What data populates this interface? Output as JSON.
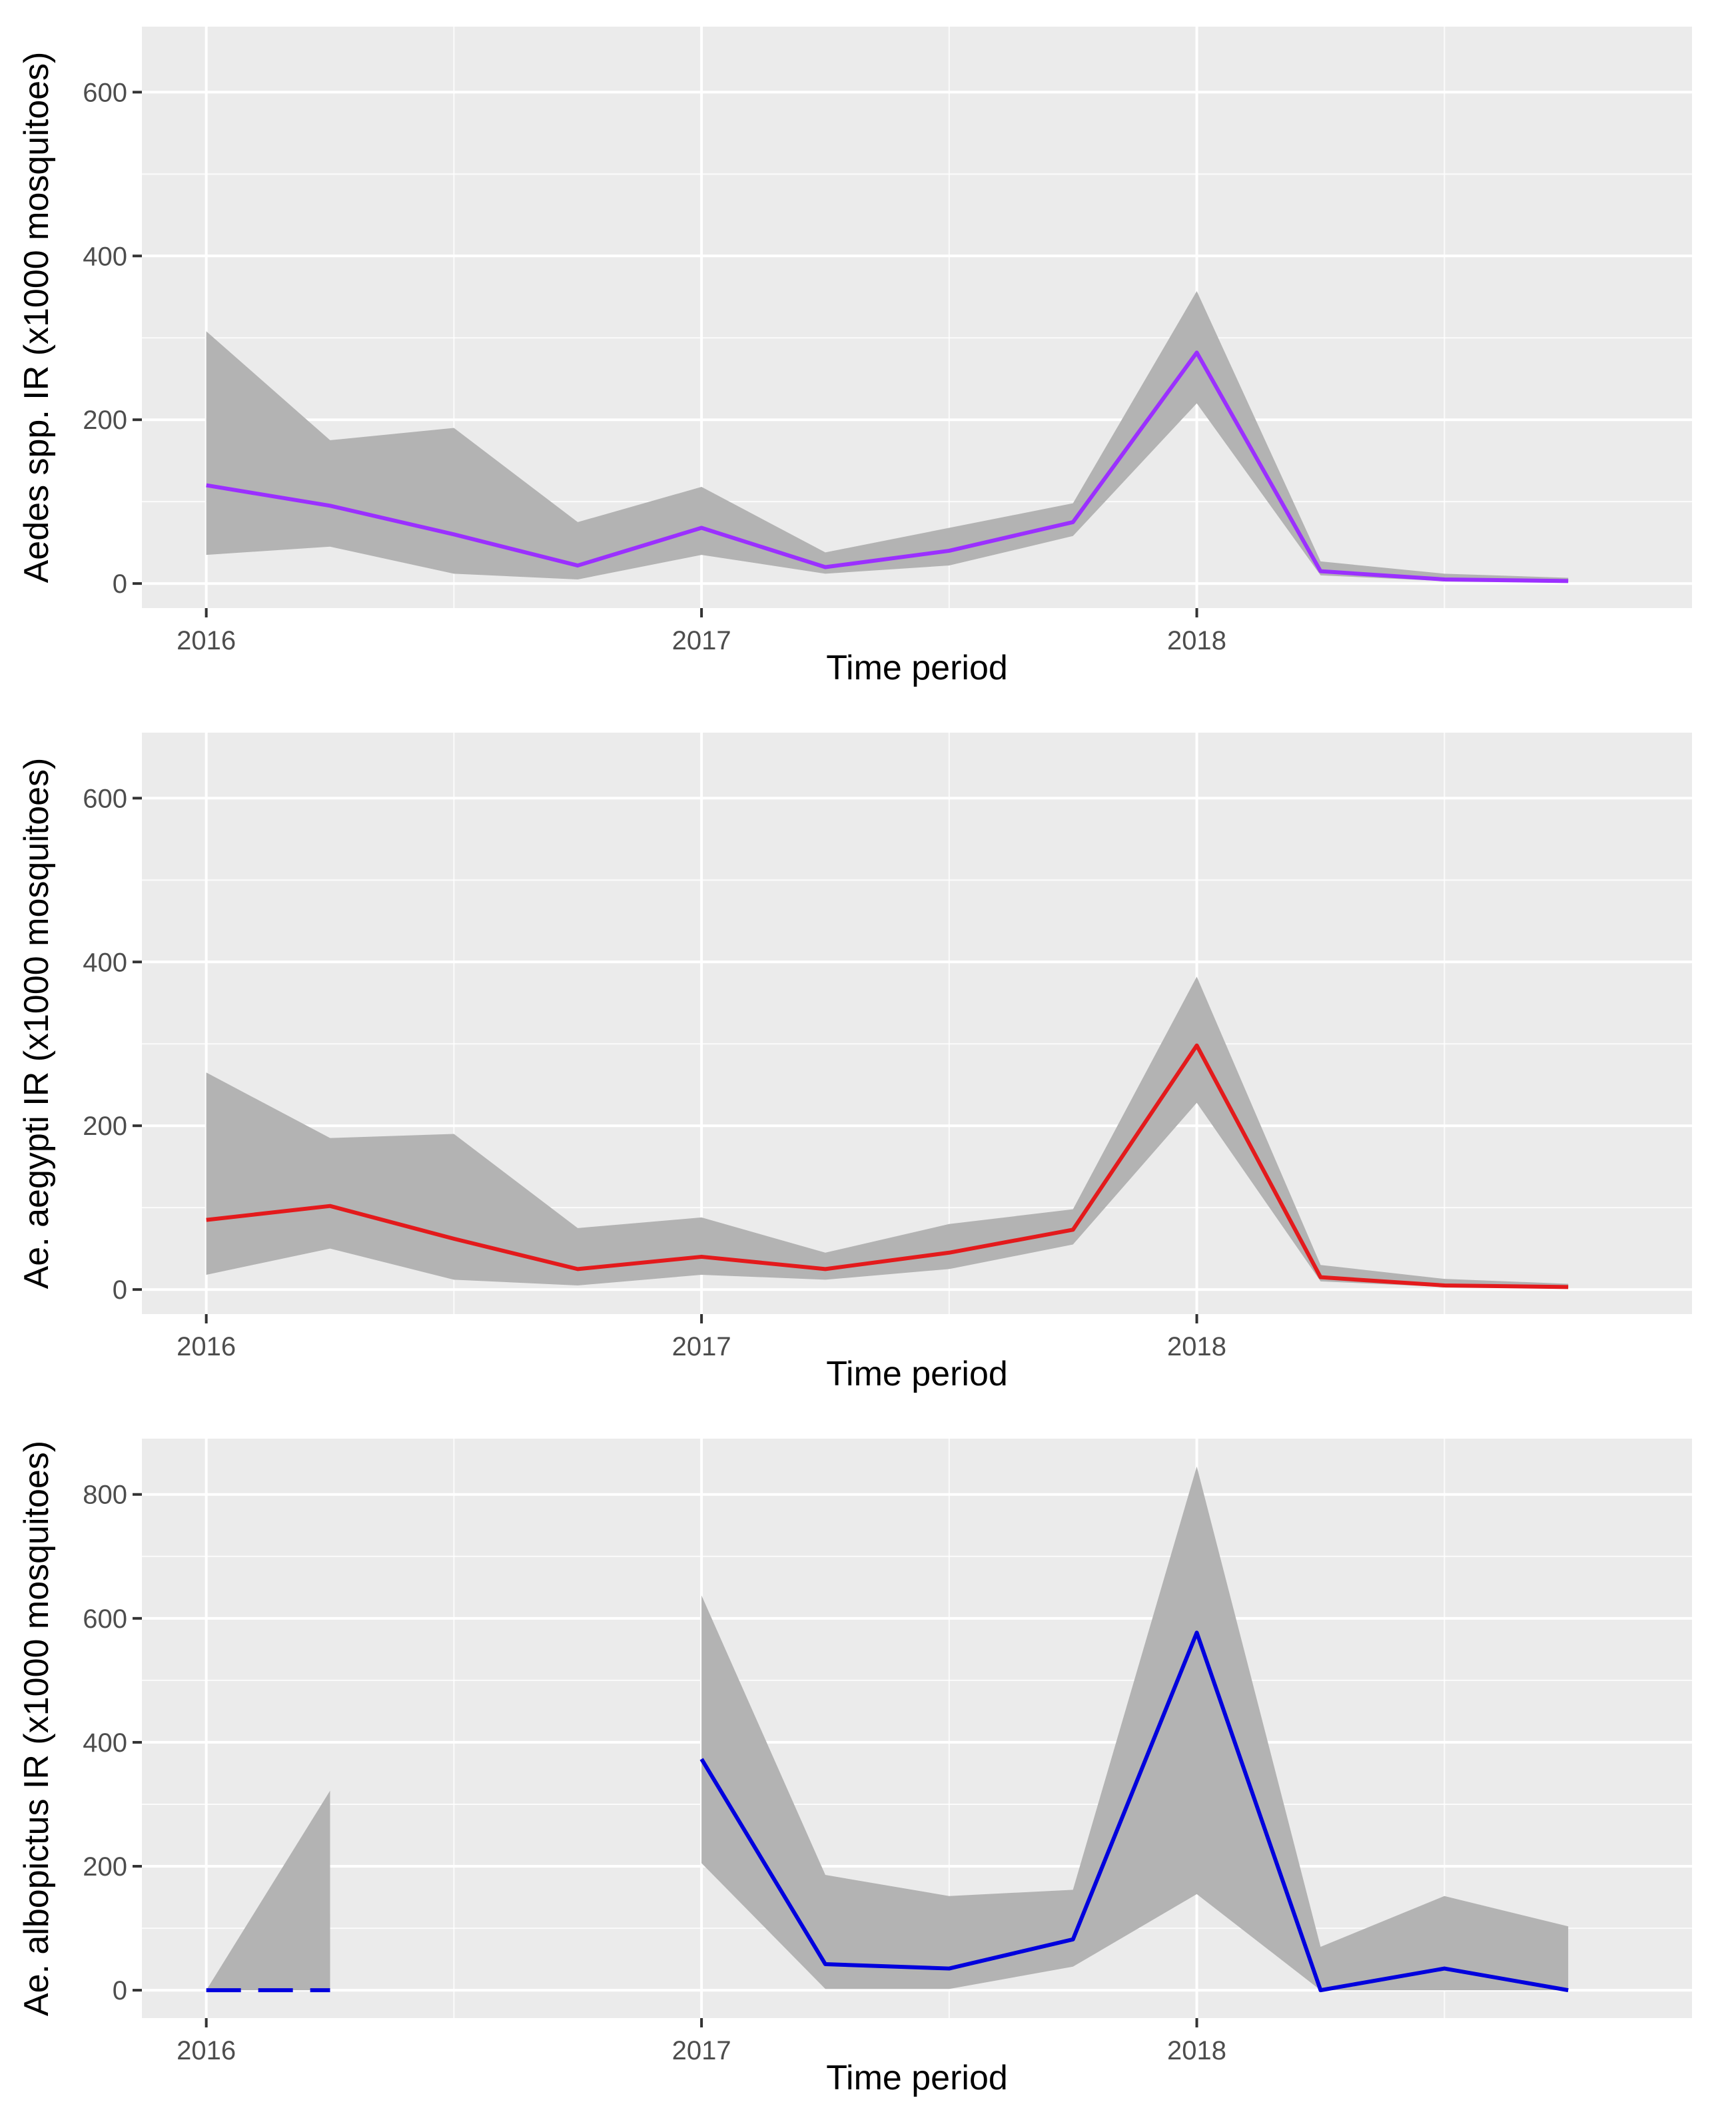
{
  "chart_data": [
    {
      "type": "line",
      "title": "",
      "xlabel": "Time period",
      "ylabel": "Aedes spp. IR (x1000 mosquitoes)",
      "x_ticks": [
        2016,
        2017,
        2018
      ],
      "x_tick_labels": [
        "2016",
        "2017",
        "2018"
      ],
      "xlim": [
        2015.87,
        2019.0
      ],
      "y_ticks": [
        0,
        200,
        400,
        600
      ],
      "y_tick_labels": [
        "0",
        "200",
        "400",
        "600"
      ],
      "ylim": [
        -30,
        680
      ],
      "grid": true,
      "color": "#9b30ff",
      "x": [
        2016.0,
        2016.25,
        2016.5,
        2016.75,
        2017.0,
        2017.25,
        2017.5,
        2017.75,
        2018.0,
        2018.25,
        2018.5,
        2018.75
      ],
      "series": [
        {
          "name": "IR",
          "segments": [
            {
              "style": "solid",
              "x": [
                2016.0,
                2016.25,
                2016.5,
                2016.75,
                2017.0,
                2017.25,
                2017.5,
                2017.75,
                2018.0,
                2018.25,
                2018.5,
                2018.75
              ],
              "y": [
                120,
                95,
                60,
                22,
                68,
                20,
                40,
                75,
                282,
                15,
                5,
                3
              ]
            }
          ]
        }
      ],
      "ribbons": [
        {
          "x": [
            2016.0,
            2016.25,
            2016.5,
            2016.75,
            2017.0,
            2017.25,
            2017.5,
            2017.75,
            2018.0,
            2018.25,
            2018.5,
            2018.75
          ],
          "lower": [
            35,
            45,
            12,
            5,
            35,
            12,
            22,
            58,
            220,
            10,
            3,
            2
          ],
          "upper": [
            308,
            175,
            190,
            75,
            118,
            38,
            68,
            98,
            357,
            27,
            12,
            7
          ]
        }
      ]
    },
    {
      "type": "line",
      "title": "",
      "xlabel": "Time period",
      "ylabel": "Ae. aegypti IR (x1000 mosquitoes)",
      "x_ticks": [
        2016,
        2017,
        2018
      ],
      "x_tick_labels": [
        "2016",
        "2017",
        "2018"
      ],
      "xlim": [
        2015.87,
        2019.0
      ],
      "y_ticks": [
        0,
        200,
        400,
        600
      ],
      "y_tick_labels": [
        "0",
        "200",
        "400",
        "600"
      ],
      "ylim": [
        -30,
        680
      ],
      "grid": true,
      "color": "#e31a1c",
      "x": [
        2016.0,
        2016.25,
        2016.5,
        2016.75,
        2017.0,
        2017.25,
        2017.5,
        2017.75,
        2018.0,
        2018.25,
        2018.5,
        2018.75
      ],
      "series": [
        {
          "name": "IR",
          "segments": [
            {
              "style": "solid",
              "x": [
                2016.0,
                2016.25,
                2016.5,
                2016.75,
                2017.0,
                2017.25,
                2017.5,
                2017.75,
                2018.0,
                2018.25,
                2018.5,
                2018.75
              ],
              "y": [
                85,
                102,
                62,
                25,
                40,
                25,
                45,
                73,
                298,
                15,
                5,
                3
              ]
            }
          ]
        }
      ],
      "ribbons": [
        {
          "x": [
            2016.0,
            2016.25,
            2016.5,
            2016.75,
            2017.0,
            2017.25,
            2017.5,
            2017.75,
            2018.0,
            2018.25,
            2018.5,
            2018.75
          ],
          "lower": [
            18,
            50,
            12,
            5,
            18,
            12,
            25,
            55,
            228,
            10,
            3,
            2
          ],
          "upper": [
            265,
            185,
            190,
            75,
            88,
            45,
            80,
            98,
            382,
            30,
            13,
            7
          ]
        }
      ]
    },
    {
      "type": "line",
      "title": "",
      "xlabel": "Time period",
      "ylabel": "Ae. albopictus IR (x1000 mosquitoes)",
      "x_ticks": [
        2016,
        2017,
        2018
      ],
      "x_tick_labels": [
        "2016",
        "2017",
        "2018"
      ],
      "xlim": [
        2015.87,
        2019.0
      ],
      "y_ticks": [
        0,
        200,
        400,
        600,
        800
      ],
      "y_tick_labels": [
        "0",
        "200",
        "400",
        "600",
        "800"
      ],
      "ylim": [
        -45,
        890
      ],
      "grid": true,
      "color": "#0000dd",
      "x": [
        2016.0,
        2016.25,
        2017.0,
        2017.25,
        2017.5,
        2017.75,
        2018.0,
        2018.25,
        2018.5,
        2018.75
      ],
      "series": [
        {
          "name": "IR",
          "segments": [
            {
              "style": "dashed",
              "x": [
                2016.0,
                2016.25
              ],
              "y": [
                0,
                0
              ]
            },
            {
              "style": "solid",
              "x": [
                2017.0,
                2017.25,
                2017.5,
                2017.75,
                2018.0,
                2018.25,
                2018.5,
                2018.75
              ],
              "y": [
                373,
                42,
                35,
                82,
                577,
                0,
                35,
                0
              ]
            }
          ]
        }
      ],
      "ribbons": [
        {
          "x": [
            2016.0,
            2016.25
          ],
          "lower": [
            0,
            0
          ],
          "upper": [
            0,
            322
          ]
        },
        {
          "x": [
            2017.0,
            2017.25,
            2017.5,
            2017.75,
            2018.0,
            2018.25,
            2018.5,
            2018.75
          ],
          "lower": [
            205,
            2,
            2,
            38,
            155,
            0,
            0,
            0
          ],
          "upper": [
            637,
            186,
            152,
            162,
            845,
            70,
            152,
            103
          ]
        }
      ]
    }
  ]
}
